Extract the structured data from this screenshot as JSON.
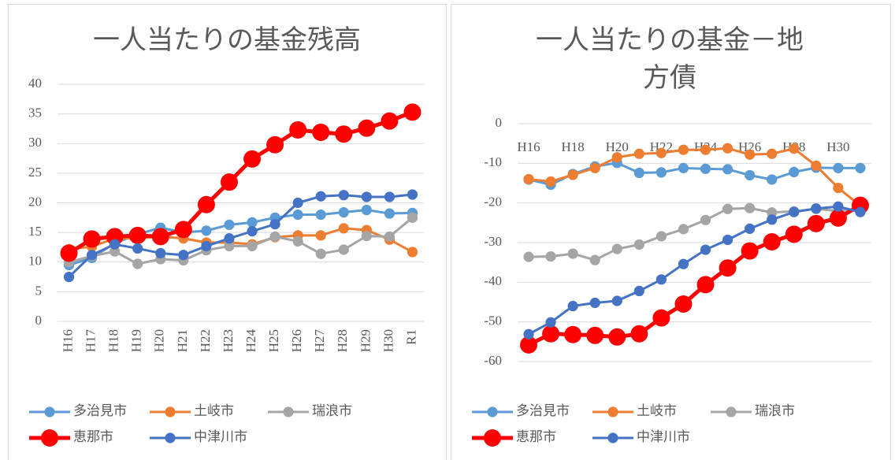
{
  "chart_data": [
    {
      "type": "line",
      "title": "一人当たりの基金残高",
      "categories": [
        "H16",
        "H17",
        "H18",
        "H19",
        "H20",
        "H21",
        "H22",
        "H23",
        "H24",
        "H25",
        "H26",
        "H27",
        "H28",
        "H29",
        "H30",
        "R1"
      ],
      "xlabel_rotate": true,
      "ylim": [
        0,
        40
      ],
      "yticks": [
        0,
        5,
        10,
        15,
        20,
        25,
        30,
        35,
        40
      ],
      "grid": true,
      "legend": "bottom",
      "series": [
        {
          "name": "多治見市",
          "color": "#5b9bd5",
          "line_width": 3,
          "values": [
            9.5,
            10.7,
            13.2,
            14.7,
            15.8,
            15.0,
            15.3,
            16.3,
            16.7,
            17.5,
            18.0,
            18.0,
            18.4,
            18.8,
            18.2,
            18.3
          ]
        },
        {
          "name": "土岐市",
          "color": "#ed7d31",
          "line_width": 3,
          "values": [
            12.2,
            12.6,
            14.0,
            14.0,
            14.3,
            14.0,
            13.3,
            13.3,
            13.0,
            14.2,
            14.5,
            14.5,
            15.7,
            15.4,
            13.8,
            11.7
          ]
        },
        {
          "name": "瑞浪市",
          "color": "#a5a5a5",
          "line_width": 3,
          "values": [
            10.0,
            11.0,
            11.8,
            9.7,
            10.5,
            10.3,
            12.0,
            12.7,
            12.7,
            14.3,
            13.5,
            11.4,
            12.1,
            14.4,
            14.3,
            17.5
          ]
        },
        {
          "name": "恵那市",
          "color": "#ff0000",
          "line_width": 5,
          "values": [
            11.5,
            13.9,
            14.3,
            14.5,
            14.3,
            15.5,
            19.7,
            23.5,
            27.4,
            29.8,
            32.3,
            31.9,
            31.6,
            32.6,
            33.8,
            35.3
          ]
        },
        {
          "name": "中津川市",
          "color": "#4472c4",
          "line_width": 3,
          "values": [
            7.5,
            11.2,
            13.0,
            12.3,
            11.5,
            11.2,
            12.7,
            14.0,
            15.2,
            16.4,
            20.0,
            21.1,
            21.3,
            21.0,
            21.0,
            21.4
          ]
        }
      ]
    },
    {
      "type": "line",
      "title": "一人当たりの基金－地方債",
      "categories": [
        "H16",
        null,
        "H18",
        null,
        "H20",
        null,
        "H22",
        null,
        "H24",
        null,
        "H26",
        null,
        "H28",
        null,
        "H30",
        null
      ],
      "xlabel_rotate": false,
      "ylim": [
        -60,
        0
      ],
      "yticks": [
        -60,
        -50,
        -40,
        -30,
        -20,
        -10,
        0
      ],
      "grid": true,
      "legend": "bottom",
      "series": [
        {
          "name": "多治見市",
          "color": "#5b9bd5",
          "line_width": 3,
          "values": [
            -14.1,
            -15.4,
            -12.7,
            -10.8,
            -9.9,
            -12.4,
            -12.3,
            -11.2,
            -11.4,
            -11.5,
            -13.0,
            -14.1,
            -12.2,
            -11.1,
            -11.2,
            -11.2
          ]
        },
        {
          "name": "土岐市",
          "color": "#ed7d31",
          "line_width": 3,
          "values": [
            -14.0,
            -14.6,
            -12.9,
            -11.2,
            -8.5,
            -7.6,
            -7.4,
            -6.6,
            -6.6,
            -6.2,
            -7.8,
            -7.6,
            -6.3,
            -10.6,
            -16.2,
            -20.7
          ]
        },
        {
          "name": "瑞浪市",
          "color": "#a5a5a5",
          "line_width": 3,
          "values": [
            -33.6,
            -33.5,
            -32.8,
            -34.4,
            -31.6,
            -30.5,
            -28.4,
            -26.6,
            -24.3,
            -21.5,
            -21.3,
            -22.4,
            -22.1,
            -21.5,
            -22.0,
            -21.5
          ]
        },
        {
          "name": "恵那市",
          "color": "#ff0000",
          "line_width": 5,
          "values": [
            -55.8,
            -53.0,
            -53.2,
            -53.4,
            -53.8,
            -53.0,
            -49.0,
            -45.5,
            -40.6,
            -36.4,
            -32.1,
            -29.8,
            -27.9,
            -25.2,
            -23.8,
            -20.6
          ]
        },
        {
          "name": "中津川市",
          "color": "#4472c4",
          "line_width": 3,
          "values": [
            -53.1,
            -50.1,
            -46.0,
            -45.2,
            -44.7,
            -42.2,
            -39.3,
            -35.4,
            -31.8,
            -29.3,
            -26.5,
            -24.2,
            -22.3,
            -21.4,
            -20.9,
            -22.3
          ]
        }
      ]
    }
  ]
}
